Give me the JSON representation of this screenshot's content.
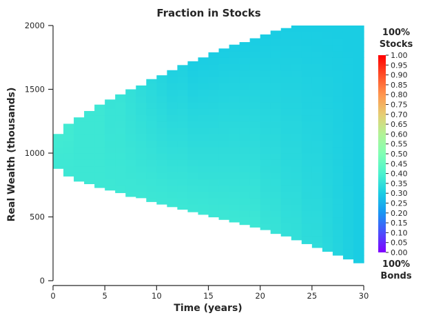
{
  "chart_data": {
    "type": "heatmap",
    "title": "Fraction in Stocks",
    "xlabel": "Time (years)",
    "ylabel": "Real Wealth (thousands)",
    "xlim": [
      0,
      30
    ],
    "ylim": [
      0,
      2000
    ],
    "x_ticks": [
      0,
      5,
      10,
      15,
      20,
      25,
      30
    ],
    "x_tick_labels": [
      "0",
      "5",
      "10",
      "15",
      "20",
      "25",
      "30"
    ],
    "y_ticks": [
      0,
      500,
      1000,
      1500,
      2000
    ],
    "y_tick_labels": [
      "0",
      "500",
      "1000",
      "1500",
      "2000"
    ],
    "grid": false,
    "colormap": "rainbow",
    "colorbar": {
      "range": [
        0.0,
        1.0
      ],
      "ticks": [
        "1.00",
        "0.95",
        "0.90",
        "0.85",
        "0.80",
        "0.75",
        "0.70",
        "0.65",
        "0.60",
        "0.55",
        "0.50",
        "0.45",
        "0.40",
        "0.35",
        "0.30",
        "0.25",
        "0.20",
        "0.15",
        "0.10",
        "0.05",
        "0.00"
      ],
      "top_label": [
        "100%",
        "Stocks"
      ],
      "bottom_label": [
        "100%",
        "Bonds"
      ]
    },
    "columns": [
      {
        "t": 1,
        "w_low": 880,
        "w_high": 1150,
        "f_low": 0.37,
        "f_high": 0.38
      },
      {
        "t": 2,
        "w_low": 820,
        "w_high": 1230,
        "f_low": 0.37,
        "f_high": 0.38
      },
      {
        "t": 3,
        "w_low": 780,
        "w_high": 1280,
        "f_low": 0.37,
        "f_high": 0.37
      },
      {
        "t": 4,
        "w_low": 760,
        "w_high": 1330,
        "f_low": 0.37,
        "f_high": 0.37
      },
      {
        "t": 5,
        "w_low": 730,
        "w_high": 1380,
        "f_low": 0.37,
        "f_high": 0.37
      },
      {
        "t": 6,
        "w_low": 710,
        "w_high": 1420,
        "f_low": 0.37,
        "f_high": 0.36
      },
      {
        "t": 7,
        "w_low": 690,
        "w_high": 1460,
        "f_low": 0.37,
        "f_high": 0.36
      },
      {
        "t": 8,
        "w_low": 660,
        "w_high": 1500,
        "f_low": 0.37,
        "f_high": 0.35
      },
      {
        "t": 9,
        "w_low": 650,
        "w_high": 1530,
        "f_low": 0.37,
        "f_high": 0.34
      },
      {
        "t": 10,
        "w_low": 620,
        "w_high": 1580,
        "f_low": 0.37,
        "f_high": 0.33
      },
      {
        "t": 11,
        "w_low": 600,
        "w_high": 1610,
        "f_low": 0.37,
        "f_high": 0.32
      },
      {
        "t": 12,
        "w_low": 580,
        "w_high": 1650,
        "f_low": 0.37,
        "f_high": 0.31
      },
      {
        "t": 13,
        "w_low": 560,
        "w_high": 1690,
        "f_low": 0.37,
        "f_high": 0.31
      },
      {
        "t": 14,
        "w_low": 540,
        "w_high": 1720,
        "f_low": 0.37,
        "f_high": 0.3
      },
      {
        "t": 15,
        "w_low": 520,
        "w_high": 1750,
        "f_low": 0.37,
        "f_high": 0.3
      },
      {
        "t": 16,
        "w_low": 500,
        "w_high": 1790,
        "f_low": 0.37,
        "f_high": 0.3
      },
      {
        "t": 17,
        "w_low": 480,
        "w_high": 1820,
        "f_low": 0.37,
        "f_high": 0.3
      },
      {
        "t": 18,
        "w_low": 460,
        "w_high": 1850,
        "f_low": 0.37,
        "f_high": 0.3
      },
      {
        "t": 19,
        "w_low": 440,
        "w_high": 1870,
        "f_low": 0.37,
        "f_high": 0.3
      },
      {
        "t": 20,
        "w_low": 420,
        "w_high": 1900,
        "f_low": 0.37,
        "f_high": 0.3
      },
      {
        "t": 21,
        "w_low": 400,
        "w_high": 1930,
        "f_low": 0.36,
        "f_high": 0.3
      },
      {
        "t": 22,
        "w_low": 370,
        "w_high": 1960,
        "f_low": 0.36,
        "f_high": 0.3
      },
      {
        "t": 23,
        "w_low": 350,
        "w_high": 1980,
        "f_low": 0.35,
        "f_high": 0.3
      },
      {
        "t": 24,
        "w_low": 320,
        "w_high": 2000,
        "f_low": 0.35,
        "f_high": 0.3
      },
      {
        "t": 25,
        "w_low": 290,
        "w_high": 2000,
        "f_low": 0.34,
        "f_high": 0.3
      },
      {
        "t": 26,
        "w_low": 260,
        "w_high": 2000,
        "f_low": 0.34,
        "f_high": 0.3
      },
      {
        "t": 27,
        "w_low": 230,
        "w_high": 2000,
        "f_low": 0.33,
        "f_high": 0.3
      },
      {
        "t": 28,
        "w_low": 200,
        "w_high": 2000,
        "f_low": 0.32,
        "f_high": 0.3
      },
      {
        "t": 29,
        "w_low": 170,
        "w_high": 2000,
        "f_low": 0.31,
        "f_high": 0.3
      },
      {
        "t": 30,
        "w_low": 140,
        "w_high": 2000,
        "f_low": 0.3,
        "f_high": 0.3
      }
    ]
  }
}
